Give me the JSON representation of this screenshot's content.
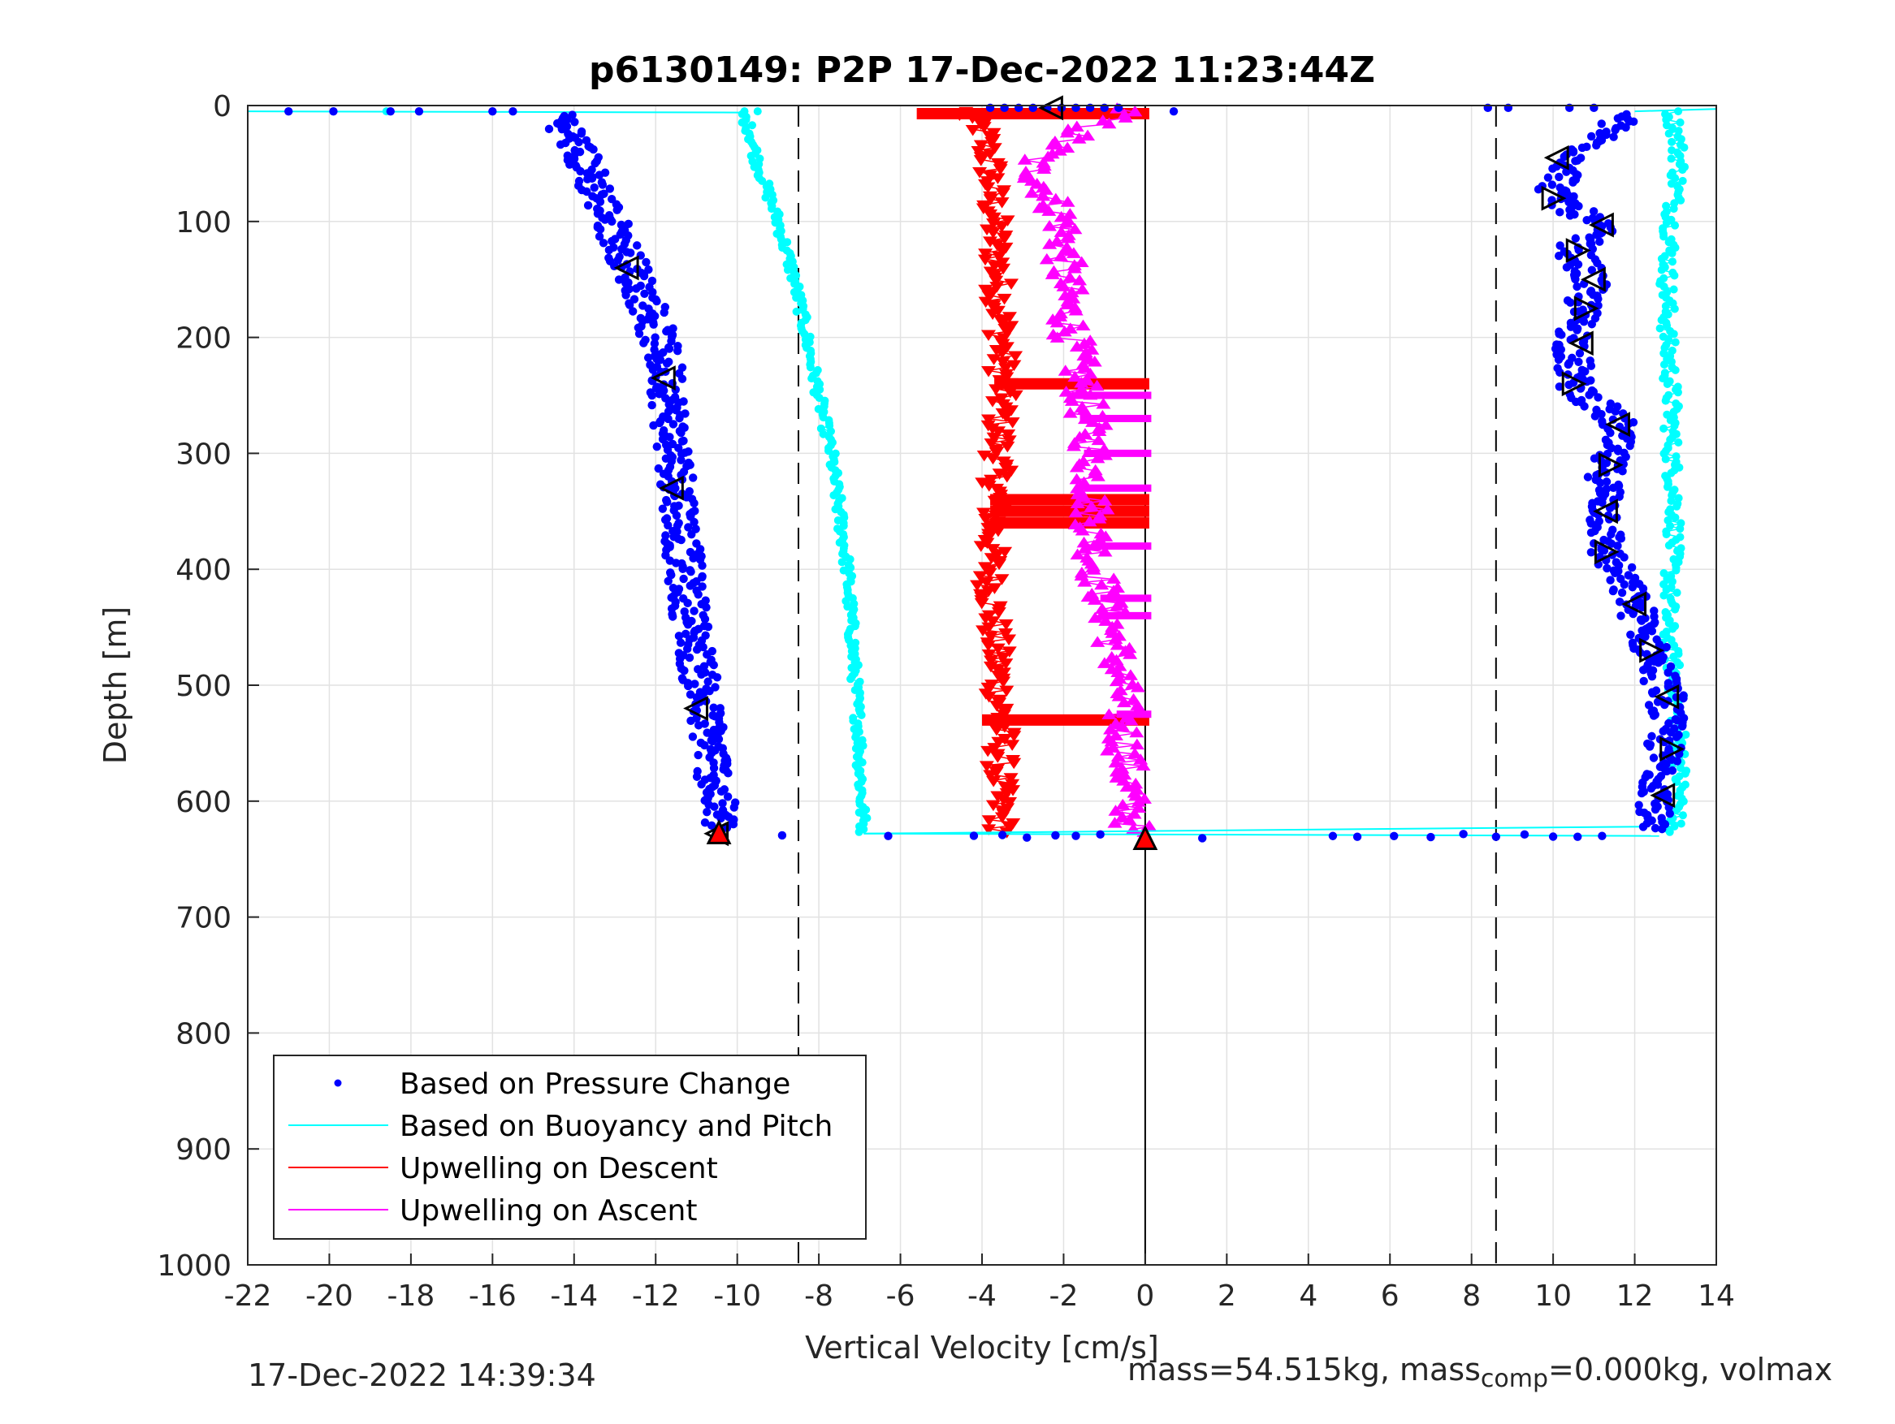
{
  "chart_data": {
    "type": "scatter",
    "title": "p6130149: P2P 17-Dec-2022 11:23:44Z",
    "xlabel": "Vertical Velocity [cm/s]",
    "ylabel": "Depth [m]",
    "xlim": [
      -22,
      14
    ],
    "ylim": [
      0,
      1000
    ],
    "y_reversed": true,
    "grid": true,
    "x_ticks": [
      "-22",
      "-20",
      "-18",
      "-16",
      "-14",
      "-12",
      "-10",
      "-8",
      "-6",
      "-4",
      "-2",
      "0",
      "2",
      "4",
      "6",
      "8",
      "10",
      "12",
      "14"
    ],
    "y_ticks": [
      "0",
      "100",
      "200",
      "300",
      "400",
      "500",
      "600",
      "700",
      "800",
      "900",
      "1000"
    ],
    "reference_lines": {
      "dashed_x": [
        -8.5,
        8.6
      ],
      "solid_x": [
        0
      ]
    },
    "legend_position": "lower-left",
    "legend": [
      {
        "label": "Based on Pressure Change",
        "style": "dot",
        "color": "#0000ff"
      },
      {
        "label": "Based on Buoyancy and Pitch",
        "style": "line",
        "color": "#00ffff"
      },
      {
        "label": "Upwelling on Descent",
        "style": "line",
        "color": "#ff0000"
      },
      {
        "label": "Upwelling on Ascent",
        "style": "line",
        "color": "#ff00ff"
      }
    ],
    "series": [
      {
        "name": "Based on Pressure Change",
        "color": "#0000ff",
        "segments": [
          {
            "depth": [
              10,
              60,
              100,
              140,
              180,
              235,
              290,
              335,
              400,
              450,
              500,
              525,
              560,
              600,
              625
            ],
            "velocity": [
              -14.3,
              -13.6,
              -13.1,
              -12.6,
              -12.1,
              -11.7,
              -11.6,
              -11.4,
              -11.3,
              -11.1,
              -10.9,
              -10.8,
              -10.6,
              -10.5,
              -10.4
            ]
          },
          {
            "depth": [
              10,
              45,
              75,
              80,
              105,
              125,
              150,
              175,
              205,
              240,
              275,
              310,
              350,
              385,
              430,
              470,
              510,
              560,
              600,
              620
            ],
            "velocity": [
              11.7,
              10.6,
              10.0,
              10.1,
              11.1,
              10.5,
              10.9,
              10.7,
              10.5,
              10.5,
              11.6,
              11.3,
              11.3,
              11.3,
              12.0,
              12.4,
              12.8,
              12.7,
              12.6,
              12.3
            ]
          }
        ],
        "surface_points": {
          "depth": 5,
          "velocity": [
            -21,
            -19.9,
            -18.5,
            -17.8,
            -16,
            -15.5,
            0.7
          ]
        },
        "bottom_points": {
          "depth": 630,
          "velocity": [
            -8.9,
            -6.3,
            -4.2,
            -3.5,
            -2.9,
            -2.2,
            -1.7,
            -1.1,
            1.4,
            4.6,
            5.2,
            6.1,
            7,
            7.8,
            8.6,
            9.3,
            10,
            10.6,
            11.2
          ]
        }
      },
      {
        "name": "Based on Buoyancy and Pitch",
        "color": "#00ffff",
        "segments": [
          {
            "depth": [
              5,
              20,
              50,
              100,
              150,
              200,
              250,
              300,
              350,
              400,
              450,
              500,
              550,
              600,
              628
            ],
            "velocity": [
              -9.9,
              -9.7,
              -9.5,
              -9.0,
              -8.6,
              -8.3,
              -8.0,
              -7.7,
              -7.5,
              -7.3,
              -7.2,
              -7.1,
              -7.0,
              -6.95,
              -6.9
            ]
          },
          {
            "depth": [
              5,
              20,
              50,
              100,
              150,
              200,
              250,
              300,
              350,
              400,
              450,
              500,
              550,
              600,
              628
            ],
            "velocity": [
              12.9,
              13.0,
              13.1,
              12.9,
              12.8,
              12.8,
              12.9,
              12.9,
              13.0,
              12.9,
              12.8,
              13.0,
              13.1,
              13.1,
              12.9
            ]
          }
        ],
        "surface_line": {
          "depth": [
            5,
            6
          ],
          "velocity": [
            -22,
            -9.9
          ]
        },
        "bottom_line": {
          "depth": [
            628,
            630
          ],
          "velocity": [
            -6.9,
            12.6
          ]
        }
      },
      {
        "name": "Upwelling on Descent",
        "color": "#ff0000",
        "depth": [
          5,
          20,
          50,
          100,
          150,
          200,
          240,
          300,
          350,
          400,
          450,
          500,
          530,
          600,
          625
        ],
        "velocity": [
          -4.5,
          -4.0,
          -3.8,
          -3.7,
          -3.6,
          -3.5,
          -3.5,
          -3.6,
          -3.7,
          -3.8,
          -3.7,
          -3.6,
          -3.5,
          -3.6,
          -3.5
        ]
      },
      {
        "name": "Upwelling on Ascent",
        "color": "#ff00ff",
        "depth": [
          5,
          20,
          50,
          100,
          150,
          200,
          250,
          300,
          350,
          400,
          450,
          500,
          550,
          600,
          625
        ],
        "velocity": [
          -0.5,
          -1.5,
          -2.8,
          -2.0,
          -2.0,
          -1.8,
          -1.5,
          -1.3,
          -1.3,
          -1.2,
          -0.8,
          -0.6,
          -0.5,
          -0.4,
          -0.3
        ]
      }
    ],
    "markers": {
      "descent_triangles": [
        {
          "velocity": -2.3,
          "depth": 2
        },
        {
          "velocity": -12.7,
          "depth": 140
        },
        {
          "velocity": -11.8,
          "depth": 235
        },
        {
          "velocity": -11.6,
          "depth": 330
        },
        {
          "velocity": -11.0,
          "depth": 520
        },
        {
          "velocity": -10.5,
          "depth": 628
        }
      ],
      "ascent_triangles": [
        {
          "velocity": 10.1,
          "depth": 45
        },
        {
          "velocity": 10.0,
          "depth": 80
        },
        {
          "velocity": 11.2,
          "depth": 103
        },
        {
          "velocity": 10.6,
          "depth": 125
        },
        {
          "velocity": 11.0,
          "depth": 150
        },
        {
          "velocity": 10.8,
          "depth": 175
        },
        {
          "velocity": 10.7,
          "depth": 205
        },
        {
          "velocity": 10.5,
          "depth": 240
        },
        {
          "velocity": 11.6,
          "depth": 275
        },
        {
          "velocity": 11.4,
          "depth": 310
        },
        {
          "velocity": 11.3,
          "depth": 350
        },
        {
          "velocity": 11.3,
          "depth": 385
        },
        {
          "velocity": 12.0,
          "depth": 430
        },
        {
          "velocity": 12.4,
          "depth": 470
        },
        {
          "velocity": 12.8,
          "depth": 510
        },
        {
          "velocity": 12.9,
          "depth": 555
        },
        {
          "velocity": 12.7,
          "depth": 595
        }
      ],
      "filled_red_triangles": [
        {
          "velocity": -10.45,
          "depth": 627
        },
        {
          "velocity": 0,
          "depth": 632
        }
      ]
    }
  },
  "footer": {
    "timestamp": "17-Dec-2022 14:39:34",
    "mass_text": "mass=54.515kg, mass",
    "mass_sub": "comp",
    "mass_rest": "=0.000kg, volmax"
  }
}
